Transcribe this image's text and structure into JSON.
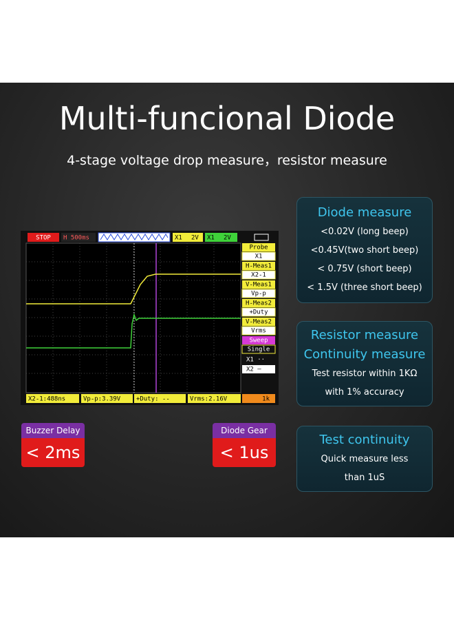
{
  "header": {
    "title": "Multi-funcional Diode",
    "subtitle": "4-stage voltage drop measure，resistor measure"
  },
  "scope": {
    "status": "STOP",
    "timebase": "H 500ms",
    "ch1": "X1",
    "ch1_scale": "2V",
    "ch2": "X1",
    "ch2_scale": "2V",
    "menu": [
      {
        "label": "Probe",
        "value": "X1"
      },
      {
        "label": "H-Meas1",
        "value": "X2-1"
      },
      {
        "label": "V-Meas1",
        "value": "Vp-p"
      },
      {
        "label": "H-Meas2",
        "value": "+Duty"
      },
      {
        "label": "V-Meas2",
        "value": "Vrms"
      },
      {
        "label": "Sweep",
        "value": "Single"
      }
    ],
    "cursors": [
      "X1 ··",
      "X2 —"
    ],
    "readouts": [
      "X2-1:488ns",
      "Vp-p:3.39V",
      "+Duty: --",
      "Vrms:2.16V"
    ],
    "freq": "1k"
  },
  "badges": [
    {
      "label": "Buzzer Delay",
      "value": "< 2ms"
    },
    {
      "label": "Diode Gear",
      "value": "< 1us"
    }
  ],
  "cards": [
    {
      "titles": [
        "Diode measure"
      ],
      "lines": [
        "<0.02V (long beep)",
        "<0.45V(two short beep)",
        "< 0.75V (short beep)",
        "< 1.5V (three short beep)"
      ]
    },
    {
      "titles": [
        "Resistor measure",
        "Continuity measure"
      ],
      "lines": [
        "Test resistor within 1KΩ",
        "with 1% accuracy"
      ]
    },
    {
      "titles": [
        "Test continuity"
      ],
      "lines": [
        "Quick measure less",
        "than 1uS"
      ]
    }
  ]
}
